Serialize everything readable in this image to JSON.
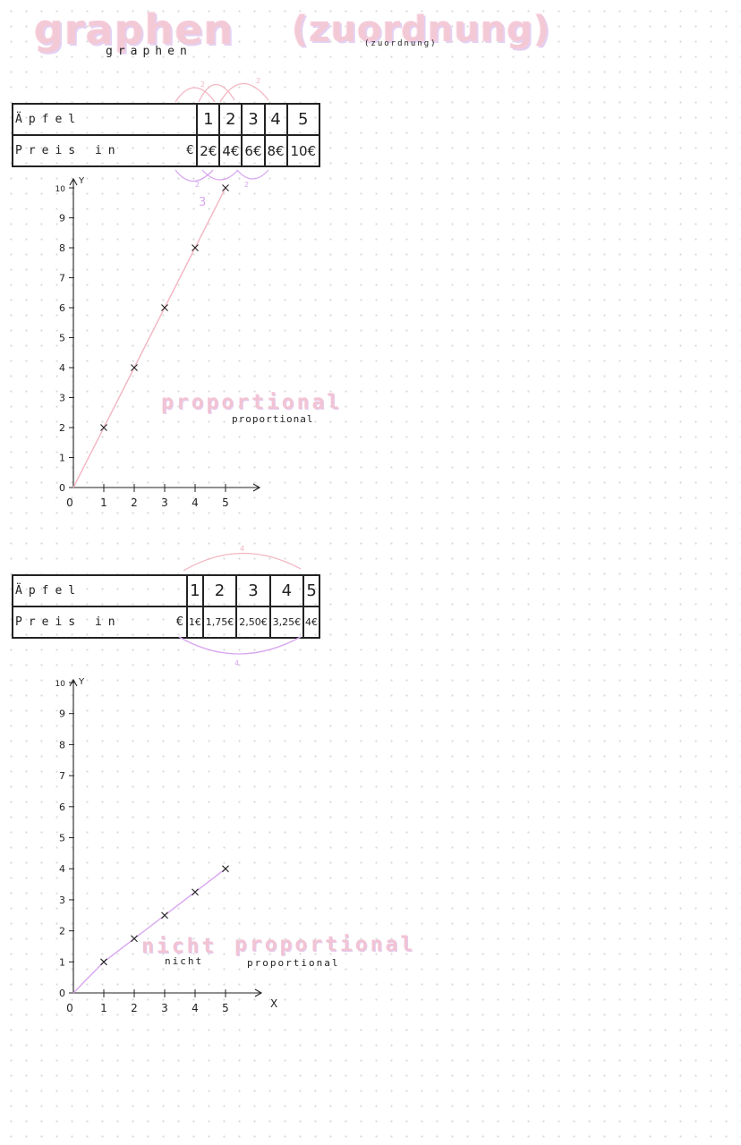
{
  "header": {
    "title_main": "graphen",
    "title_sub": "(zuordnung)",
    "label_main": "graphen",
    "label_sub": "(zuordnung)"
  },
  "table1": {
    "row1_label": "Äpfel",
    "row2_label": "Preis in",
    "unit": "€",
    "apples": [
      "1",
      "2",
      "3",
      "4",
      "5"
    ],
    "prices": [
      "2€",
      "4€",
      "6€",
      "8€",
      "10€"
    ],
    "arc_top_labels": [
      "2",
      "2"
    ],
    "arc_bottom_labels": [
      "2",
      "2",
      "3"
    ]
  },
  "table2": {
    "row1_label": "Äpfel",
    "row2_label": "Preis in",
    "unit": "€",
    "apples": [
      "1",
      "2",
      "3",
      "4",
      "5"
    ],
    "prices": [
      "1€",
      "1,75€",
      "2,50€",
      "3,25€",
      "4€"
    ],
    "arc_top_label": "4",
    "arc_bottom_label": "4"
  },
  "labels": {
    "proportional_art": "proportional",
    "proportional_sub": "proportional",
    "nicht_art": "nicht",
    "proportional_art2": "proportional",
    "nicht_sub": "nicht",
    "proportional_sub2": "proportional"
  },
  "colors": {
    "line1": "#f3b6c2",
    "line2": "#d8a6ef",
    "arc_pink": "#f3b6c2",
    "arc_purple": "#d8a6ef",
    "axis": "#222222"
  },
  "chart_data": [
    {
      "type": "line",
      "x": [
        0,
        1,
        2,
        3,
        4,
        5
      ],
      "series": [
        {
          "values": [
            0,
            2,
            4,
            6,
            8,
            10
          ]
        }
      ],
      "x_ticks": [
        "0",
        "1",
        "2",
        "3",
        "4",
        "5"
      ],
      "y_ticks": [
        "0",
        "1",
        "2",
        "3",
        "4",
        "5",
        "6",
        "7",
        "8",
        "9",
        "10"
      ],
      "ylabel": "Y",
      "xlim": [
        0,
        6
      ],
      "ylim": [
        0,
        10
      ],
      "grid": false
    },
    {
      "type": "line",
      "x": [
        0,
        1,
        2,
        3,
        4,
        5
      ],
      "series": [
        {
          "values": [
            0,
            1,
            1.75,
            2.5,
            3.25,
            4
          ]
        }
      ],
      "x_ticks": [
        "0",
        "1",
        "2",
        "3",
        "4",
        "5"
      ],
      "y_ticks": [
        "0",
        "1",
        "2",
        "3",
        "4",
        "5",
        "6",
        "7",
        "8",
        "9",
        "10"
      ],
      "xlabel": "X",
      "ylabel": "Y",
      "xlim": [
        0,
        6
      ],
      "ylim": [
        0,
        10
      ],
      "grid": false
    }
  ]
}
